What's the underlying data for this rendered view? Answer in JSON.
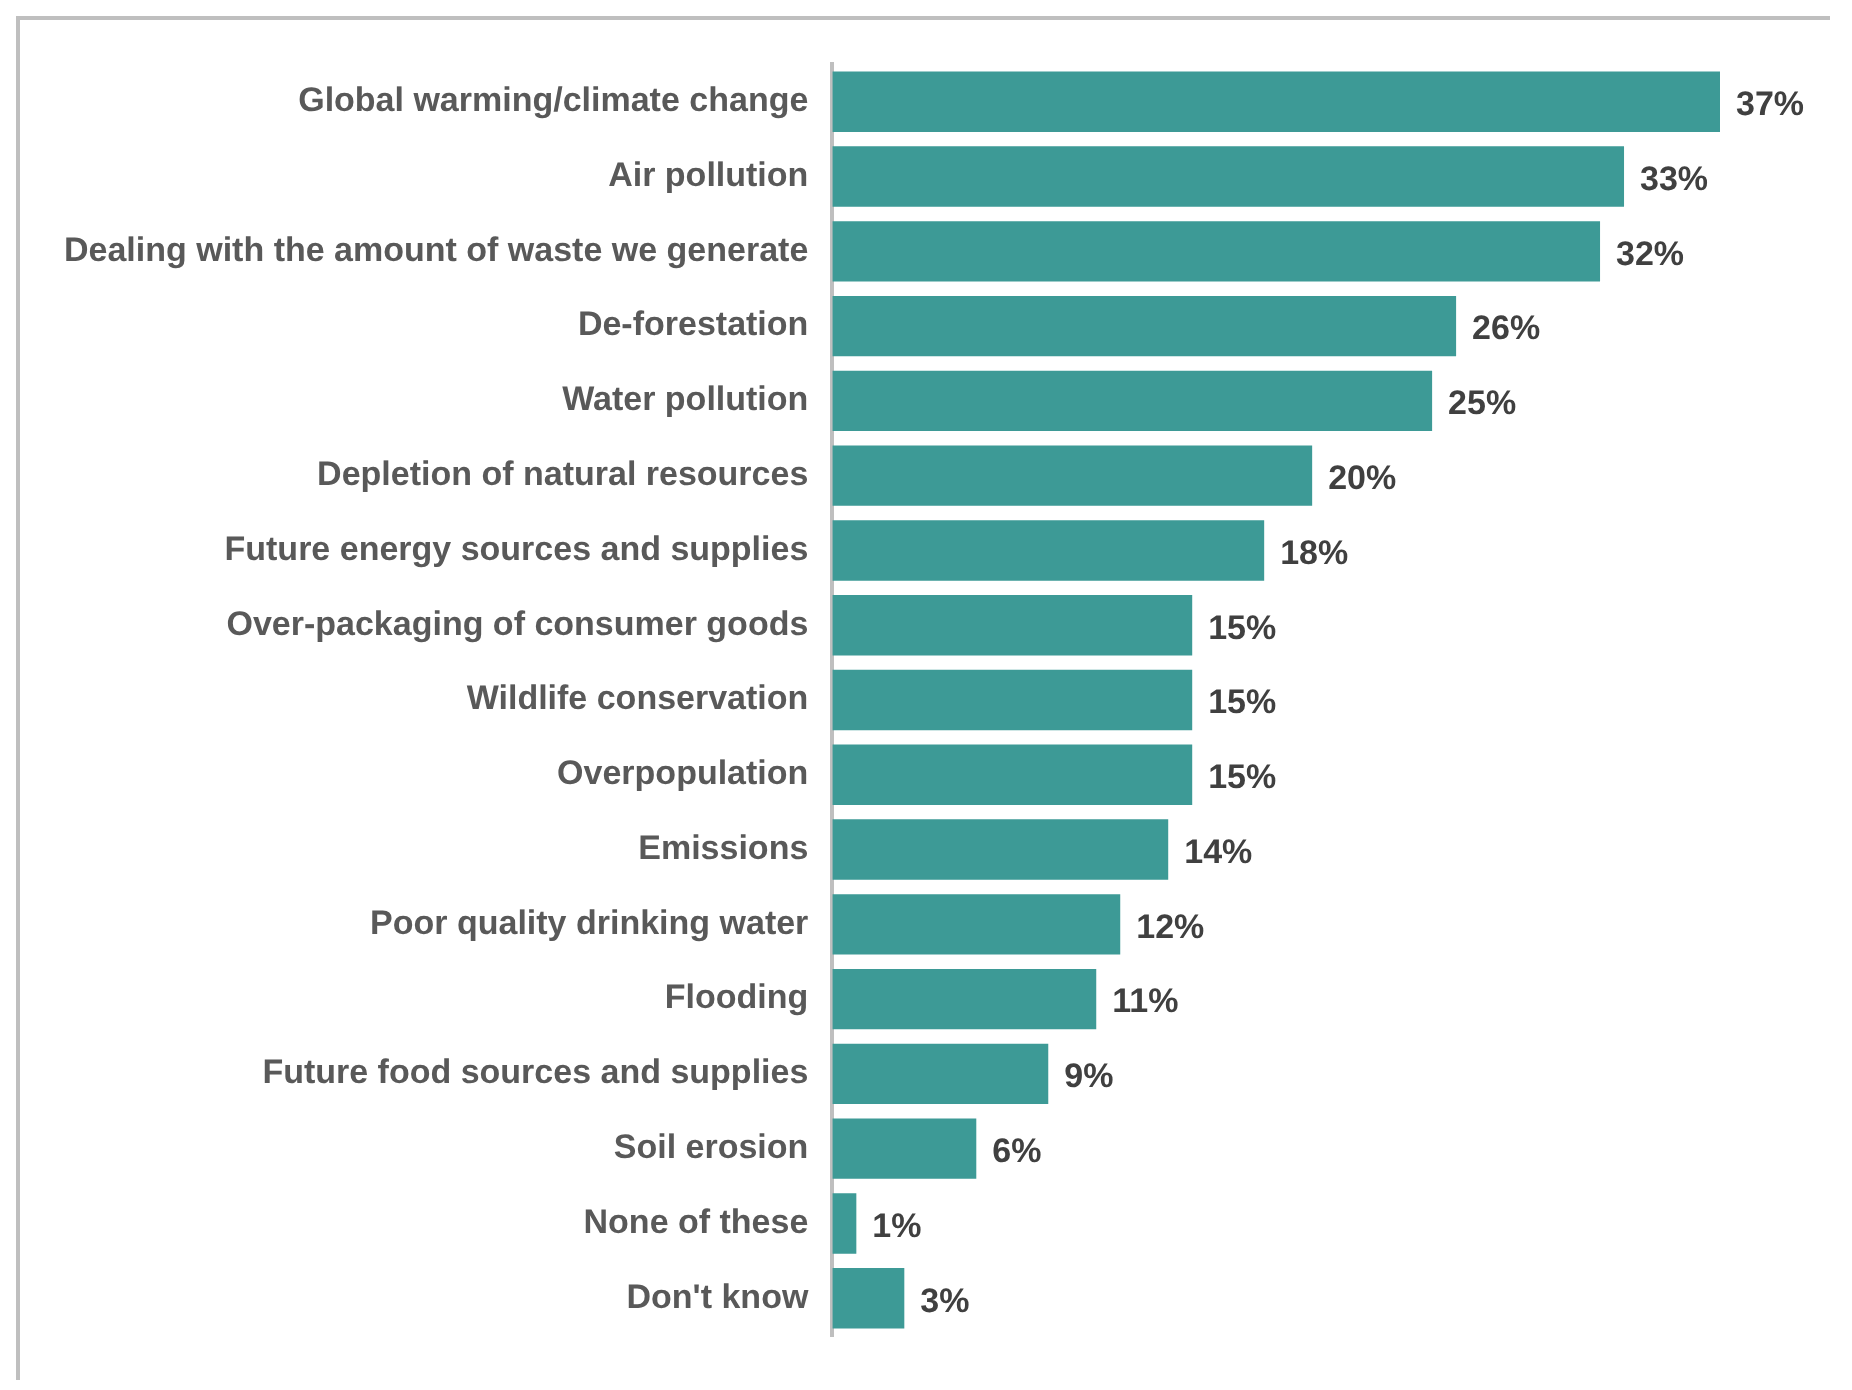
{
  "chart_data": {
    "type": "bar",
    "orientation": "horizontal",
    "categories": [
      "Global warming/climate change",
      "Air pollution",
      "Dealing with the amount of waste we generate",
      "De-forestation",
      "Water pollution",
      "Depletion of natural resources",
      "Future energy sources and supplies",
      "Over-packaging of consumer goods",
      "Wildlife conservation",
      "Overpopulation",
      "Emissions",
      "Poor quality drinking water",
      "Flooding",
      "Future food sources and supplies",
      "Soil erosion",
      "None of these",
      "Don't know"
    ],
    "values": [
      37,
      33,
      32,
      26,
      25,
      20,
      18,
      15,
      15,
      15,
      14,
      12,
      11,
      9,
      6,
      1,
      3
    ],
    "value_labels": [
      "37%",
      "33%",
      "32%",
      "26%",
      "25%",
      "20%",
      "18%",
      "15%",
      "15%",
      "15%",
      "14%",
      "12%",
      "11%",
      "9%",
      "6%",
      "1%",
      "3%"
    ],
    "color": "#3d9a96",
    "grid": false,
    "legend": false
  }
}
